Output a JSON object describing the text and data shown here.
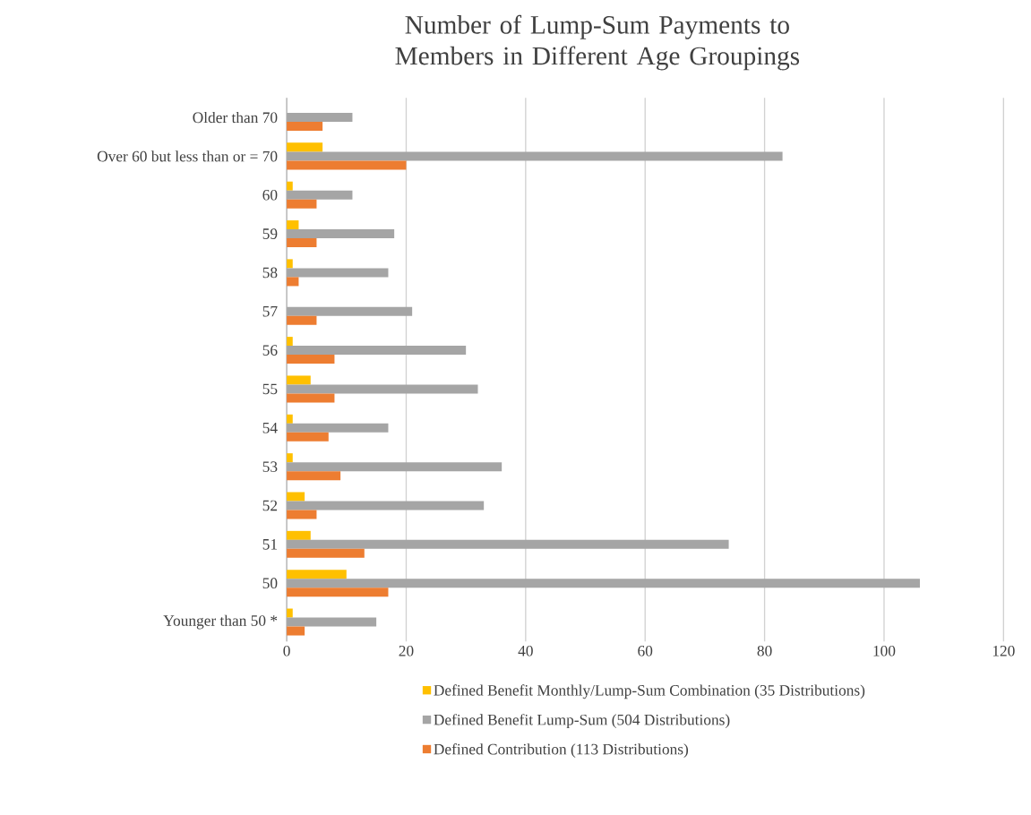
{
  "chart_data": {
    "type": "bar",
    "orientation": "horizontal",
    "title": "Number of Lump-Sum Payments to Members in Different Age Groupings",
    "categories": [
      "Older than 70",
      "Over 60 but less than or = 70",
      "60",
      "59",
      "58",
      "57",
      "56",
      "55",
      "54",
      "53",
      "52",
      "51",
      "50",
      "Younger than 50 *"
    ],
    "series": [
      {
        "name": "Defined Benefit Monthly/Lump-Sum Combination (35 Distributions)",
        "color": "#ffc000",
        "values": [
          0,
          6,
          1,
          2,
          1,
          0,
          1,
          4,
          1,
          1,
          3,
          4,
          10,
          1
        ]
      },
      {
        "name": "Defined Benefit Lump-Sum (504 Distributions)",
        "color": "#a5a5a5",
        "values": [
          11,
          83,
          11,
          18,
          17,
          21,
          30,
          32,
          17,
          36,
          33,
          74,
          106,
          15
        ]
      },
      {
        "name": "Defined Contribution (113 Distributions)",
        "color": "#ed7d31",
        "values": [
          6,
          20,
          5,
          5,
          2,
          5,
          8,
          8,
          7,
          9,
          5,
          13,
          17,
          3
        ]
      }
    ],
    "xlim": [
      0,
      120
    ],
    "xticks": [
      0,
      20,
      40,
      60,
      80,
      100,
      120
    ],
    "grid": "x",
    "legend": "bottom"
  }
}
